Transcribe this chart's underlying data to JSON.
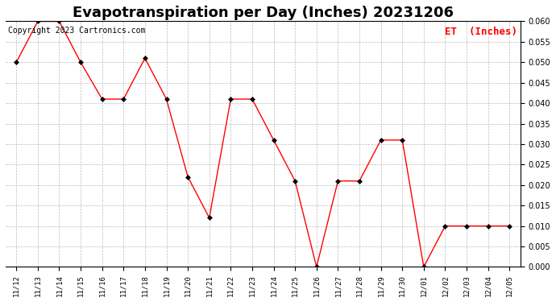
{
  "title": "Evapotranspiration per Day (Inches) 20231206",
  "legend_label": "ET  (Inches)",
  "copyright_text": "Copyright 2023 Cartronics.com",
  "x_labels": [
    "11/12",
    "11/13",
    "11/14",
    "11/15",
    "11/16",
    "11/17",
    "11/18",
    "11/19",
    "11/20",
    "11/21",
    "11/22",
    "11/23",
    "11/24",
    "11/25",
    "11/26",
    "11/27",
    "11/28",
    "11/29",
    "11/30",
    "12/01",
    "12/02",
    "12/03",
    "12/04",
    "12/05"
  ],
  "y_values": [
    0.05,
    0.06,
    0.06,
    0.05,
    0.041,
    0.041,
    0.051,
    0.041,
    0.022,
    0.012,
    0.041,
    0.041,
    0.031,
    0.021,
    0.0,
    0.021,
    0.021,
    0.031,
    0.031,
    0.0,
    0.01,
    0.01,
    0.01,
    0.01
  ],
  "line_color": "red",
  "marker_color": "black",
  "background_color": "#ffffff",
  "grid_color": "#bbbbbb",
  "ylim": [
    0.0,
    0.06
  ],
  "yticks": [
    0.0,
    0.005,
    0.01,
    0.015,
    0.02,
    0.025,
    0.03,
    0.035,
    0.04,
    0.045,
    0.05,
    0.055,
    0.06
  ],
  "title_fontsize": 13,
  "legend_fontsize": 9,
  "copyright_fontsize": 7,
  "tick_fontsize": 7,
  "xtick_fontsize": 6.5
}
